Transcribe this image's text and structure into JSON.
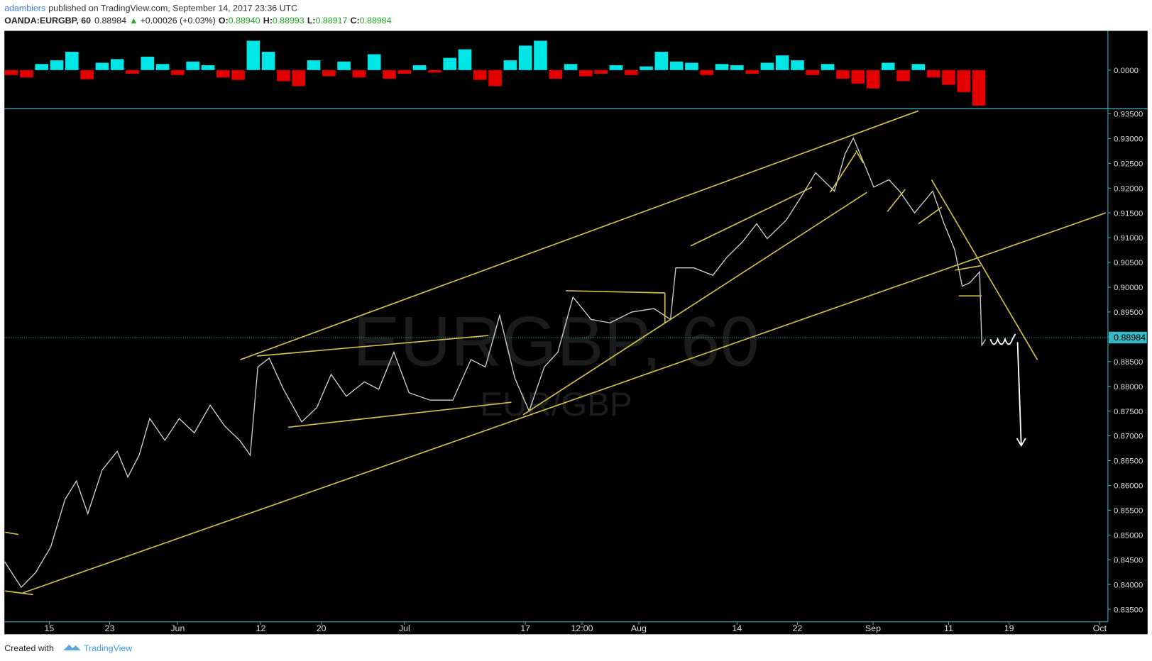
{
  "header": {
    "author": "adambiers",
    "published": "published on TradingView.com, September 14, 2017 23:36 UTC",
    "symbol": "OANDA:EURGBP, 60",
    "price": "0.88984",
    "arrow": "▲",
    "change": "+0.00026 (+0.03%)",
    "open_label": "O:",
    "open": "0.88940",
    "high_label": "H:",
    "high": "0.88993",
    "low_label": "L:",
    "low": "0.88917",
    "close_label": "C:",
    "close": "0.88984"
  },
  "watermark": {
    "title": "EURGBP, 60",
    "subtitle": "EUR/GBP"
  },
  "footer": {
    "created": "Created with",
    "brand": "TradingView"
  },
  "chart_data": [
    {
      "type": "bar",
      "positive_color": "#00e5e5",
      "negative_color": "#e50000",
      "xlim": [
        129.07,
        275.08
      ],
      "ylim": [
        -0.0063,
        0.0063
      ],
      "yticks": [
        {
          "value": 0,
          "label": "0.0000"
        }
      ],
      "x": [
        130,
        132,
        134,
        136,
        138,
        140,
        142,
        144,
        146,
        148,
        150,
        152,
        154,
        156,
        158,
        160,
        162,
        164,
        166,
        168,
        170,
        172,
        174,
        176,
        178,
        180,
        182,
        184,
        186,
        188,
        190,
        192,
        194,
        196,
        198,
        200,
        202,
        204,
        206,
        208,
        210,
        212,
        214,
        216,
        218,
        220,
        222,
        224,
        226,
        228,
        230,
        232,
        234,
        236,
        238,
        240,
        242,
        244,
        246,
        248,
        250,
        252,
        254,
        256,
        258
      ],
      "values": [
        -0.0008,
        -0.0012,
        0.001,
        0.0016,
        0.003,
        -0.0015,
        0.0012,
        0.0018,
        -0.0006,
        0.0022,
        0.001,
        -0.0008,
        0.0014,
        0.0008,
        -0.0012,
        -0.0016,
        0.0048,
        0.003,
        -0.0018,
        -0.0026,
        0.0016,
        -0.001,
        0.0014,
        -0.0012,
        0.0026,
        -0.0014,
        -0.0006,
        0.0008,
        -0.0004,
        0.002,
        0.0034,
        -0.0016,
        -0.0026,
        0.0016,
        0.004,
        0.0048,
        -0.0014,
        0.001,
        -0.001,
        -0.0006,
        0.0008,
        -0.0008,
        0.0006,
        0.003,
        0.0014,
        0.0012,
        -0.0008,
        0.001,
        0.0008,
        -0.0006,
        0.0012,
        0.0024,
        0.0016,
        -0.0008,
        0.001,
        -0.0014,
        -0.0022,
        -0.003,
        0.0012,
        -0.0018,
        0.001,
        -0.0012,
        -0.0024,
        -0.0036,
        -0.0058
      ]
    },
    {
      "type": "line",
      "color": "#cfcfcf",
      "xlim": [
        129.07,
        275.08
      ],
      "ylim": [
        0.83248,
        0.93574
      ],
      "yticks": [
        {
          "value": 0.835,
          "label": "0.83500"
        },
        {
          "value": 0.84,
          "label": "0.84000"
        },
        {
          "value": 0.845,
          "label": "0.84500"
        },
        {
          "value": 0.85,
          "label": "0.85000"
        },
        {
          "value": 0.855,
          "label": "0.85500"
        },
        {
          "value": 0.86,
          "label": "0.86000"
        },
        {
          "value": 0.865,
          "label": "0.86500"
        },
        {
          "value": 0.87,
          "label": "0.87000"
        },
        {
          "value": 0.875,
          "label": "0.87500"
        },
        {
          "value": 0.88,
          "label": "0.88000"
        },
        {
          "value": 0.885,
          "label": "0.88500"
        },
        {
          "value": 0.89,
          "label": "0.89000"
        },
        {
          "value": 0.895,
          "label": "0.89500"
        },
        {
          "value": 0.9,
          "label": "0.90000"
        },
        {
          "value": 0.905,
          "label": "0.90500"
        },
        {
          "value": 0.91,
          "label": "0.91000"
        },
        {
          "value": 0.915,
          "label": "0.91500"
        },
        {
          "value": 0.92,
          "label": "0.92000"
        },
        {
          "value": 0.925,
          "label": "0.92500"
        },
        {
          "value": 0.93,
          "label": "0.93000"
        },
        {
          "value": 0.935,
          "label": "0.93500"
        }
      ],
      "xticks": [
        {
          "value": 135,
          "label": "15"
        },
        {
          "value": 143,
          "label": "23"
        },
        {
          "value": 152,
          "label": "Jun"
        },
        {
          "value": 163,
          "label": "12"
        },
        {
          "value": 171,
          "label": "20"
        },
        {
          "value": 182,
          "label": "Jul"
        },
        {
          "value": 198,
          "label": "17"
        },
        {
          "value": 205.5,
          "label": "12:00"
        },
        {
          "value": 213,
          "label": "Aug"
        },
        {
          "value": 226,
          "label": "14"
        },
        {
          "value": 234,
          "label": "22"
        },
        {
          "value": 244,
          "label": "Sep"
        },
        {
          "value": 254,
          "label": "11"
        },
        {
          "value": 262,
          "label": "19"
        },
        {
          "value": 274,
          "label": "Oct"
        }
      ],
      "last_price": {
        "value": 0.88984,
        "label": "0.88984"
      },
      "x": [
        129.1,
        131.3,
        133.2,
        135.2,
        137.1,
        138.6,
        140.1,
        142,
        144,
        145.4,
        146.9,
        148.3,
        150.3,
        152.2,
        154.2,
        156.3,
        158.2,
        160.2,
        161.6,
        162.6,
        164.1,
        166,
        168.4,
        170.4,
        172.3,
        174.3,
        176.7,
        178.6,
        180.6,
        182.6,
        185.4,
        188.4,
        190.8,
        192.7,
        194.6,
        196.6,
        198.5,
        200.5,
        202.3,
        204.3,
        206.7,
        209.2,
        212.1,
        215,
        217.2,
        217.9,
        220.3,
        222.8,
        224.7,
        226.7,
        228.6,
        230,
        232.5,
        234.4,
        236.4,
        238.9,
        240.3,
        241.4,
        242.7,
        244.1,
        246.1,
        247.5,
        249.5,
        251.9,
        253.4,
        254.8,
        255.8,
        256.8,
        258.1,
        258.4,
        258.9
      ],
      "values": [
        0.84463,
        0.83944,
        0.8424,
        0.8476,
        0.8572,
        0.8609,
        0.8543,
        0.8631,
        0.8669,
        0.8617,
        0.8661,
        0.8735,
        0.8691,
        0.8735,
        0.8706,
        0.8762,
        0.872,
        0.8691,
        0.8661,
        0.8839,
        0.8857,
        0.8794,
        0.8728,
        0.8757,
        0.8824,
        0.878,
        0.8809,
        0.8794,
        0.8869,
        0.8787,
        0.8772,
        0.8772,
        0.8854,
        0.8839,
        0.8943,
        0.8817,
        0.875,
        0.8839,
        0.8869,
        0.898,
        0.8935,
        0.8928,
        0.895,
        0.8957,
        0.8935,
        0.9039,
        0.9039,
        0.9024,
        0.9061,
        0.9091,
        0.9128,
        0.9098,
        0.9135,
        0.918,
        0.9231,
        0.9194,
        0.9269,
        0.9301,
        0.9254,
        0.9202,
        0.9217,
        0.9194,
        0.915,
        0.9194,
        0.9128,
        0.9076,
        0.9002,
        0.9009,
        0.9031,
        0.8883,
        0.8895
      ]
    }
  ]
}
